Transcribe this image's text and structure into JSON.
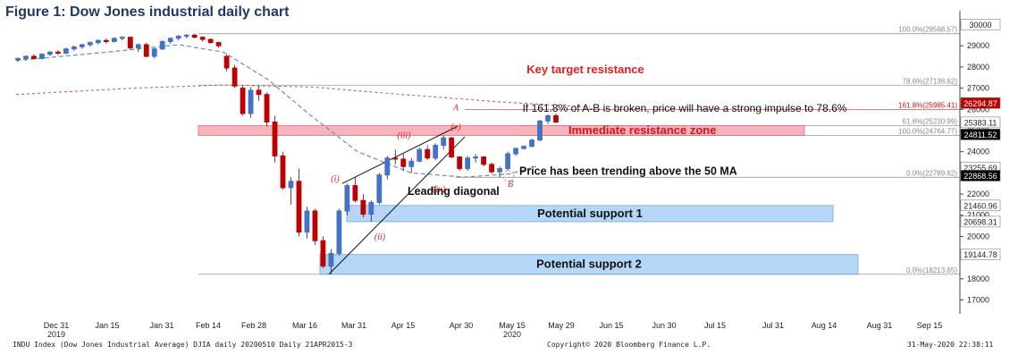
{
  "figure_title": "Figure 1: Dow Jones industrial daily chart",
  "footer": {
    "left": "INDU Index (Dow Jones Industrial Average) DJIA daily 20200510  Daily 21APR2015-3",
    "center": "Copyright© 2020 Bloomberg Finance L.P.",
    "right": "31-May-2020 22:38:11"
  },
  "colors": {
    "up_candle": "#4472c4",
    "down_candle": "#c00000",
    "resistance_zone": "#f4a6b0",
    "support_zone": "#a9d0f5",
    "ma_dashed": "#6a8fb5",
    "ma_200": "#c55a6b",
    "annotation_red": "#e02020"
  },
  "chart_data": {
    "type": "candlestick",
    "x_ticks": [
      "Dec 31",
      "Jan 15",
      "Jan 31",
      "Feb 14",
      "Feb 28",
      "Mar 16",
      "Mar 31",
      "Apr 15",
      "Apr 30",
      "May 15",
      "May 29",
      "Jun 15",
      "Jun 30",
      "Jul 15",
      "Jul 31",
      "Aug 14",
      "Aug 31",
      "Sep 15"
    ],
    "x_year_labels": [
      {
        "label": "2019",
        "at": "Dec 31"
      },
      {
        "label": "2020",
        "at": "May 15"
      }
    ],
    "y_ticks": [
      17000,
      18000,
      19000,
      20000,
      21000,
      22000,
      23000,
      24000,
      25000,
      26000,
      27000,
      28000,
      29000,
      30000
    ],
    "ylim": [
      16600,
      30400
    ],
    "candles": [
      [
        28350,
        28450,
        28250,
        28400
      ],
      [
        28400,
        28550,
        28300,
        28500
      ],
      [
        28500,
        28600,
        28350,
        28400
      ],
      [
        28400,
        28650,
        28350,
        28600
      ],
      [
        28600,
        28750,
        28500,
        28700
      ],
      [
        28700,
        28800,
        28550,
        28650
      ],
      [
        28650,
        28900,
        28600,
        28850
      ],
      [
        28850,
        29000,
        28750,
        28950
      ],
      [
        28950,
        29100,
        28850,
        29050
      ],
      [
        29050,
        29200,
        28950,
        29150
      ],
      [
        29150,
        29300,
        29050,
        29250
      ],
      [
        29250,
        29350,
        29100,
        29200
      ],
      [
        29200,
        29400,
        29150,
        29350
      ],
      [
        29350,
        29450,
        29250,
        29400
      ],
      [
        29400,
        29350,
        28800,
        28900
      ],
      [
        28900,
        29100,
        28700,
        29050
      ],
      [
        29050,
        29150,
        28450,
        28500
      ],
      [
        28500,
        28900,
        28400,
        28850
      ],
      [
        28850,
        29250,
        28800,
        29200
      ],
      [
        29200,
        29400,
        29100,
        29350
      ],
      [
        29350,
        29500,
        29250,
        29450
      ],
      [
        29450,
        29550,
        29350,
        29500
      ],
      [
        29500,
        29568,
        29350,
        29400
      ],
      [
        29400,
        29450,
        29200,
        29300
      ],
      [
        29300,
        29350,
        29100,
        29150
      ],
      [
        29150,
        29200,
        28900,
        29000
      ],
      [
        28500,
        28600,
        27800,
        27950
      ],
      [
        27950,
        28100,
        27000,
        27100
      ],
      [
        27000,
        27100,
        25700,
        25800
      ],
      [
        25800,
        27050,
        25600,
        26900
      ],
      [
        26900,
        27100,
        26400,
        26700
      ],
      [
        26700,
        26800,
        25200,
        25400
      ],
      [
        25400,
        25700,
        23500,
        23800
      ],
      [
        23800,
        24000,
        22200,
        22300
      ],
      [
        22300,
        22800,
        21500,
        22600
      ],
      [
        22600,
        23200,
        20000,
        20200
      ],
      [
        20200,
        21400,
        19900,
        21200
      ],
      [
        21200,
        21300,
        19600,
        19800
      ],
      [
        19800,
        20000,
        18500,
        18600
      ],
      [
        18600,
        19400,
        18213,
        19200
      ],
      [
        19200,
        21300,
        19100,
        21200
      ],
      [
        21200,
        22500,
        21000,
        22400
      ],
      [
        22400,
        22800,
        21600,
        21700
      ],
      [
        21700,
        22000,
        20900,
        21050
      ],
      [
        21050,
        21700,
        20700,
        21600
      ],
      [
        21600,
        23000,
        21500,
        22900
      ],
      [
        22900,
        23800,
        22700,
        23700
      ],
      [
        23700,
        24100,
        23400,
        23650
      ],
      [
        23650,
        23900,
        23100,
        23300
      ],
      [
        23300,
        23700,
        23000,
        23550
      ],
      [
        23550,
        24200,
        23500,
        24100
      ],
      [
        24100,
        24300,
        23600,
        23700
      ],
      [
        23700,
        24400,
        23600,
        24300
      ],
      [
        24300,
        24764,
        24100,
        24650
      ],
      [
        24650,
        24700,
        23700,
        23750
      ],
      [
        23750,
        23800,
        23100,
        23200
      ],
      [
        23200,
        23800,
        23100,
        23700
      ],
      [
        23700,
        23900,
        23500,
        23750
      ],
      [
        23750,
        23800,
        23300,
        23400
      ],
      [
        23400,
        23500,
        22950,
        23050
      ],
      [
        23050,
        23300,
        22789,
        23200
      ],
      [
        23200,
        24000,
        23100,
        23900
      ],
      [
        23900,
        24200,
        23800,
        24150
      ],
      [
        24150,
        24300,
        24100,
        24250
      ],
      [
        24250,
        24600,
        24200,
        24550
      ],
      [
        24550,
        25500,
        24500,
        25450
      ],
      [
        25450,
        25750,
        25300,
        25700
      ],
      [
        25700,
        25800,
        25350,
        25400
      ]
    ],
    "horizontal_levels": [
      {
        "label": "100.0%(29568.57)",
        "value": 29568.57
      },
      {
        "label": "78.6%(27138.62)",
        "value": 27138.62
      },
      {
        "label": "61.8%(25230.99)",
        "value": 25230.99
      },
      {
        "label": "100.0%(24764.77)",
        "value": 24764.77
      },
      {
        "label": "0.0%(22789.62)",
        "value": 22789.62
      },
      {
        "label": "0.0%(18213.65)",
        "value": 18213.65
      },
      {
        "label": "161.8%(25985.41)",
        "value": 25985.41,
        "color": "#e02020"
      }
    ],
    "price_tags": [
      {
        "label": "30000",
        "value": 30000,
        "bg": "#ffffff",
        "fg": "#222222"
      },
      {
        "label": "26294.87",
        "value": 26294.87,
        "bg": "#c00000",
        "fg": "#ffffff"
      },
      {
        "label": "25383.11",
        "value": 25383.11,
        "bg": "#ffffff",
        "fg": "#222222"
      },
      {
        "label": "24811.52",
        "value": 24811.52,
        "bg": "#000000",
        "fg": "#ffffff"
      },
      {
        "label": "23255.69",
        "value": 23255.69,
        "bg": "#ffffff",
        "fg": "#222222"
      },
      {
        "label": "22868.56",
        "value": 22868.56,
        "bg": "#000000",
        "fg": "#ffffff"
      },
      {
        "label": "21460.96",
        "value": 21460.96,
        "bg": "#ffffff",
        "fg": "#222222"
      },
      {
        "label": "20698.31",
        "value": 20698.31,
        "bg": "#ffffff",
        "fg": "#222222"
      },
      {
        "label": "19144.78",
        "value": 19144.78,
        "bg": "#ffffff",
        "fg": "#222222"
      }
    ],
    "zones": [
      {
        "label": "Immediate resistance zone",
        "low": 24764.77,
        "high": 25230.99
      },
      {
        "label": "Potential support 1",
        "low": 20698.31,
        "high": 21460.96
      },
      {
        "label": "Potential support 2",
        "low": 18213.65,
        "high": 19144.78
      }
    ],
    "annotations": {
      "key_target": "Key target resistance",
      "if_broken": "If 161.8% of A-B is broken, price will have a strong impulse to 78.6%",
      "trending": "Price has been trending above the 50 MA",
      "leading_diagonal": "Leading diagonal",
      "waves": [
        "(i)",
        "(ii)",
        "(iii)",
        "(iv)",
        "(v)"
      ],
      "points": [
        "A",
        "B"
      ]
    }
  }
}
